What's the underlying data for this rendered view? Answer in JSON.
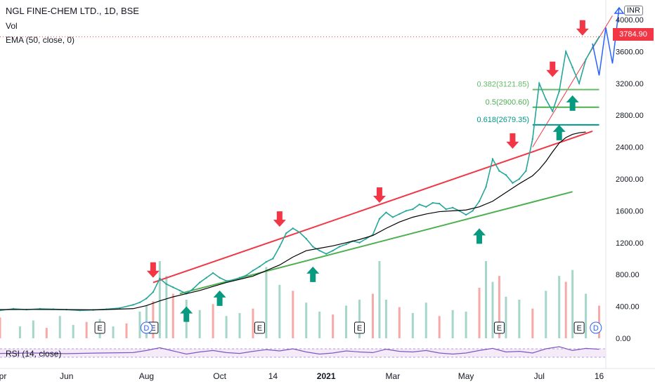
{
  "header": {
    "title": "NGL FINE-CHEM LTD., 1D, BSE",
    "vol_label": "Vol",
    "ema_label": "EMA (50, close, 0)",
    "rsi_label": "RSI (14, close)",
    "currency": "INR"
  },
  "chart_data": {
    "type": "line",
    "title": "NGL FINE-CHEM LTD., 1D, BSE",
    "last_price": 3784.9,
    "last_price_label": "3784.90",
    "y_axis": {
      "range": [
        0,
        4000
      ],
      "ticks": [
        0,
        400,
        800,
        1200,
        1600,
        2000,
        2400,
        2800,
        3200,
        3600,
        4000
      ],
      "tick_labels": [
        "0.00",
        "400.00",
        "800.00",
        "1200.00",
        "1600.00",
        "2000.00",
        "2400.00",
        "2800.00",
        "3200.00",
        "3600.00",
        "4000.00"
      ]
    },
    "x_axis": {
      "tick_labels": [
        "Apr",
        "Jun",
        "Aug",
        "Oct",
        "14",
        "2021",
        "Mar",
        "May",
        "Jul",
        "16"
      ],
      "tick_index": [
        0,
        20,
        44,
        66,
        82,
        98,
        118,
        140,
        162,
        180
      ]
    },
    "series": [
      {
        "name": "price",
        "color": "#26a69a",
        "x": [
          0,
          4,
          8,
          12,
          16,
          20,
          24,
          28,
          32,
          36,
          40,
          42,
          44,
          46,
          48,
          50,
          52,
          54,
          56,
          58,
          60,
          62,
          64,
          66,
          68,
          70,
          72,
          74,
          76,
          78,
          80,
          82,
          84,
          86,
          88,
          90,
          92,
          94,
          96,
          98,
          100,
          102,
          104,
          106,
          108,
          110,
          112,
          114,
          116,
          118,
          120,
          122,
          124,
          126,
          128,
          130,
          132,
          134,
          136,
          138,
          140,
          142,
          144,
          146,
          148,
          150,
          152,
          154,
          156,
          158,
          160,
          162,
          164,
          166,
          168,
          170,
          172,
          174,
          176,
          178,
          180
        ],
        "values": [
          350,
          370,
          360,
          370,
          365,
          360,
          350,
          355,
          365,
          380,
          420,
          450,
          500,
          580,
          750,
          680,
          640,
          600,
          560,
          620,
          700,
          760,
          820,
          760,
          720,
          730,
          760,
          790,
          850,
          900,
          960,
          1000,
          1150,
          1320,
          1380,
          1330,
          1250,
          1150,
          1100,
          1060,
          1100,
          1150,
          1180,
          1220,
          1200,
          1250,
          1300,
          1500,
          1580,
          1520,
          1560,
          1600,
          1620,
          1680,
          1650,
          1700,
          1690,
          1620,
          1640,
          1600,
          1550,
          1600,
          1720,
          1900,
          2250,
          2100,
          2050,
          1950,
          2000,
          2100,
          2500,
          3200,
          3000,
          2850,
          3100,
          3600,
          3400,
          3200,
          3500,
          3650,
          3784.9
        ]
      },
      {
        "name": "EMA (50, close, 0)",
        "color": "#000000",
        "x": [
          0,
          10,
          20,
          30,
          40,
          44,
          48,
          52,
          56,
          60,
          64,
          68,
          72,
          76,
          80,
          84,
          88,
          92,
          96,
          100,
          104,
          108,
          112,
          116,
          120,
          124,
          128,
          132,
          136,
          140,
          144,
          148,
          152,
          156,
          160,
          162,
          164,
          166,
          168,
          170,
          172,
          174,
          176
        ],
        "values": [
          360,
          362,
          360,
          358,
          372,
          410,
          470,
          520,
          560,
          600,
          650,
          700,
          740,
          780,
          850,
          920,
          1020,
          1100,
          1130,
          1160,
          1200,
          1240,
          1290,
          1380,
          1460,
          1520,
          1560,
          1590,
          1600,
          1610,
          1650,
          1720,
          1830,
          1940,
          2040,
          2120,
          2220,
          2340,
          2450,
          2520,
          2560,
          2580,
          2590
        ]
      },
      {
        "name": "RSI (14, close)",
        "color": "#7e57c2",
        "range": [
          0,
          100
        ],
        "x": [
          0,
          10,
          20,
          30,
          40,
          44,
          48,
          52,
          56,
          60,
          64,
          68,
          72,
          76,
          80,
          84,
          88,
          92,
          96,
          100,
          104,
          108,
          112,
          116,
          120,
          124,
          128,
          132,
          136,
          140,
          144,
          148,
          152,
          156,
          160,
          164,
          168,
          172,
          176,
          180
        ],
        "values": [
          48,
          50,
          47,
          50,
          52,
          62,
          75,
          60,
          45,
          55,
          62,
          52,
          48,
          58,
          66,
          60,
          70,
          55,
          45,
          50,
          60,
          55,
          52,
          68,
          58,
          55,
          62,
          50,
          45,
          50,
          62,
          72,
          55,
          58,
          50,
          70,
          80,
          62,
          72,
          68
        ]
      }
    ],
    "volume": {
      "name": "Vol",
      "x": [
        0,
        6,
        10,
        14,
        18,
        22,
        26,
        30,
        34,
        38,
        42,
        44,
        46,
        48,
        50,
        52,
        56,
        60,
        64,
        68,
        72,
        76,
        80,
        84,
        88,
        92,
        96,
        100,
        104,
        108,
        112,
        114,
        116,
        120,
        124,
        128,
        132,
        136,
        140,
        144,
        146,
        148,
        150,
        152,
        156,
        160,
        164,
        168,
        170,
        172,
        176,
        180
      ],
      "values": [
        140,
        80,
        120,
        70,
        150,
        90,
        110,
        130,
        80,
        100,
        180,
        220,
        250,
        520,
        420,
        300,
        260,
        190,
        230,
        150,
        170,
        200,
        480,
        360,
        320,
        240,
        180,
        160,
        220,
        260,
        300,
        520,
        260,
        210,
        170,
        240,
        150,
        190,
        180,
        340,
        520,
        380,
        420,
        280,
        260,
        200,
        320,
        420,
        380,
        460,
        300,
        220
      ]
    },
    "fibonacci": [
      {
        "label": "0.382(3121.85)",
        "value": 3121.85,
        "color": "#66bb6a"
      },
      {
        "label": "0.5(2900.60)",
        "value": 2900.6,
        "color": "#4caf50"
      },
      {
        "label": "0.618(2679.35)",
        "value": 2679.35,
        "color": "#009688"
      }
    ],
    "trendlines": [
      {
        "name": "resistance",
        "color": "#f23645",
        "from": [
          46,
          700
        ],
        "to": [
          178,
          2600
        ]
      },
      {
        "name": "support",
        "color": "#4caf50",
        "from": [
          54,
          560
        ],
        "to": [
          172,
          1840
        ]
      },
      {
        "name": "steep",
        "color": "#f23645",
        "from": [
          160,
          2400
        ],
        "to": [
          184,
          4050
        ]
      }
    ],
    "down_arrows": [
      {
        "x": 46,
        "y": 760
      },
      {
        "x": 84,
        "y": 1400
      },
      {
        "x": 114,
        "y": 1700
      },
      {
        "x": 154,
        "y": 2380
      },
      {
        "x": 166,
        "y": 3280
      },
      {
        "x": 175,
        "y": 3800
      }
    ],
    "up_arrows": [
      {
        "x": 56,
        "y": 400
      },
      {
        "x": 66,
        "y": 600
      },
      {
        "x": 94,
        "y": 900
      },
      {
        "x": 144,
        "y": 1380
      },
      {
        "x": 168,
        "y": 2680
      },
      {
        "x": 172,
        "y": 3050
      }
    ],
    "earnings_markers": [
      {
        "x": 30,
        "label": "E"
      },
      {
        "x": 46,
        "label": "E"
      },
      {
        "x": 78,
        "label": "E"
      },
      {
        "x": 108,
        "label": "E"
      },
      {
        "x": 150,
        "label": "E"
      },
      {
        "x": 174,
        "label": "E"
      }
    ],
    "dividend_markers": [
      {
        "x": 44,
        "label": "D"
      },
      {
        "x": 179,
        "label": "D"
      }
    ],
    "projection_color": "#2962ff",
    "grid": false,
    "legend": "top-left"
  }
}
